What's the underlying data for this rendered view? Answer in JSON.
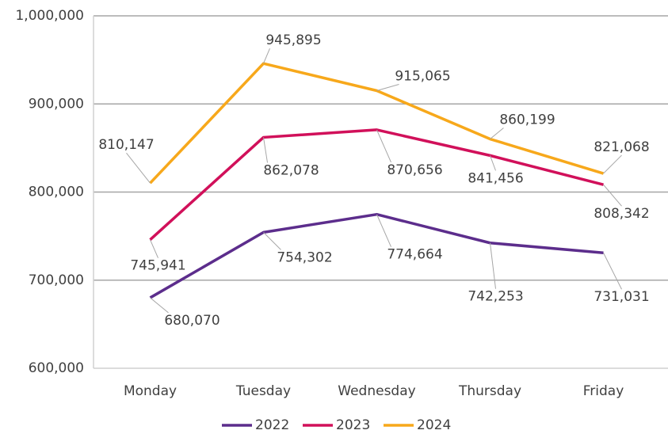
{
  "chart_data": {
    "type": "line",
    "categories": [
      "Monday",
      "Tuesday",
      "Wednesday",
      "Thursday",
      "Friday"
    ],
    "series": [
      {
        "name": "2022",
        "color": "#5c2d8c",
        "values": [
          680070,
          754302,
          774664,
          742253,
          731031
        ],
        "value_labels": [
          "680,070",
          "754,302",
          "774,664",
          "742,253",
          "731,031"
        ]
      },
      {
        "name": "2023",
        "color": "#d1105a",
        "values": [
          745941,
          862078,
          870656,
          841456,
          808342
        ],
        "value_labels": [
          "745,941",
          "862,078",
          "870,656",
          "841,456",
          "808,342"
        ]
      },
      {
        "name": "2024",
        "color": "#f7a81b",
        "values": [
          810147,
          945895,
          915065,
          860199,
          821068
        ],
        "value_labels": [
          "810,147",
          "945,895",
          "915,065",
          "860,199",
          "821,068"
        ]
      }
    ],
    "ylim": [
      600000,
      1000000
    ],
    "yticks": [
      {
        "value": 600000,
        "label": "600,000"
      },
      {
        "value": 700000,
        "label": "700,000"
      },
      {
        "value": 800000,
        "label": "800,000"
      },
      {
        "value": 900000,
        "label": "900,000"
      },
      {
        "value": 1000000,
        "label": "1,000,000"
      }
    ],
    "grid": true,
    "legend": "bottom"
  }
}
